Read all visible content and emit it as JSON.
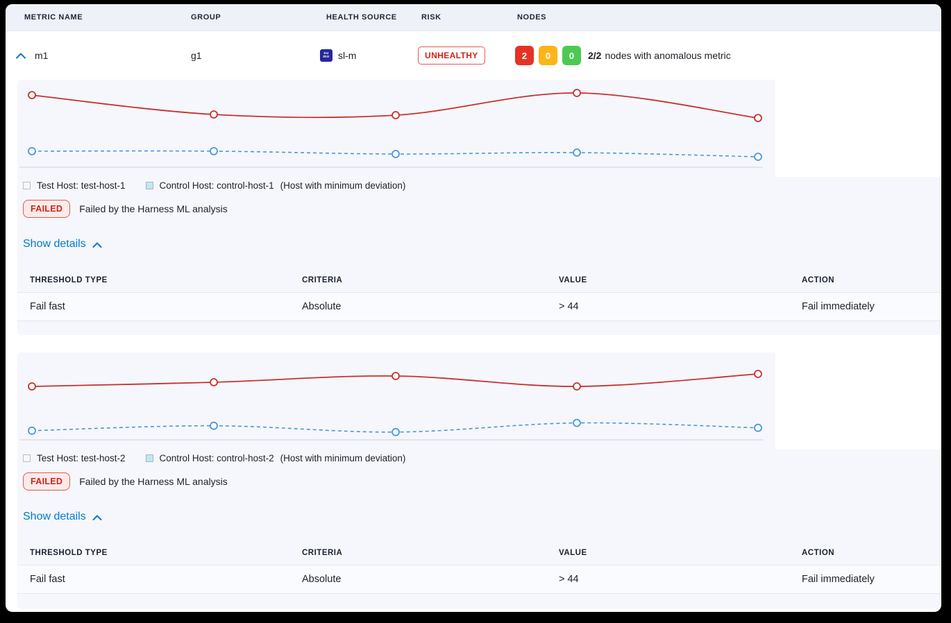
{
  "header": {
    "columns": [
      "METRIC NAME",
      "GROUP",
      "HEALTH SOURCE",
      "RISK",
      "NODES"
    ]
  },
  "metric_row": {
    "metric_name": "m1",
    "group": "g1",
    "health_source": {
      "icon": "sumologic-icon",
      "icon_text_top": "su",
      "icon_text_bottom": "mo",
      "label": "sl-m"
    },
    "risk": "UNHEALTHY",
    "nodes": {
      "counts": [
        {
          "value": "2",
          "color": "#e43326"
        },
        {
          "value": "0",
          "color": "#fcb519"
        },
        {
          "value": "0",
          "color": "#4dc952"
        }
      ],
      "ratio": "2/2",
      "label": "nodes with anomalous metric"
    }
  },
  "panels": [
    {
      "legend": {
        "test_label": "Test Host: test-host-1",
        "control_label": "Control Host: control-host-1",
        "deviation_note": "(Host with minimum deviation)"
      },
      "status": {
        "badge": "FAILED",
        "message": "Failed by the Harness ML analysis"
      },
      "details_link": "Show details",
      "table": {
        "columns": [
          "THRESHOLD TYPE",
          "CRITERIA",
          "VALUE",
          "ACTION"
        ],
        "rows": [
          [
            "Fail fast",
            "Absolute",
            "> 44",
            "Fail immediately"
          ]
        ]
      }
    },
    {
      "legend": {
        "test_label": "Test Host: test-host-2",
        "control_label": "Control Host: control-host-2",
        "deviation_note": "(Host with minimum deviation)"
      },
      "status": {
        "badge": "FAILED",
        "message": "Failed by the Harness ML analysis"
      },
      "details_link": "Show details",
      "table": {
        "columns": [
          "THRESHOLD TYPE",
          "CRITERIA",
          "VALUE",
          "ACTION"
        ],
        "rows": [
          [
            "Fail fast",
            "Absolute",
            "> 44",
            "Fail immediately"
          ]
        ]
      }
    }
  ],
  "chart_data": [
    {
      "type": "line",
      "x": [
        1,
        2,
        3,
        4,
        5
      ],
      "xlabel": "",
      "ylabel": "",
      "ylim": [
        0,
        100
      ],
      "grid": false,
      "axes_hidden": true,
      "legend_position": "below",
      "series": [
        {
          "name": "Test Host: test-host-1",
          "color": "#c9302c",
          "style": "solid",
          "values": [
            82.5,
            60.3,
            59.5,
            84.9,
            56.3
          ]
        },
        {
          "name": "Control Host: control-host-1",
          "color": "#4697e0",
          "style": "dashed",
          "values": [
            18.3,
            18.3,
            15.1,
            16.7,
            11.9
          ]
        }
      ]
    },
    {
      "type": "line",
      "x": [
        1,
        2,
        3,
        4,
        5
      ],
      "xlabel": "",
      "ylabel": "",
      "ylim": [
        0,
        100
      ],
      "grid": false,
      "axes_hidden": true,
      "legend_position": "below",
      "series": [
        {
          "name": "Test Host: test-host-2",
          "color": "#c9302c",
          "style": "solid",
          "values": [
            61.1,
            65.9,
            73.0,
            61.1,
            75.4
          ]
        },
        {
          "name": "Control Host: control-host-2",
          "color": "#4697e0",
          "style": "dashed",
          "values": [
            10.5,
            16.1,
            8.9,
            19.4,
            13.7
          ]
        }
      ]
    }
  ],
  "colors": {
    "accent_blue": "#0278d5",
    "risk_red": "#cf2318",
    "node_red": "#e43326",
    "node_yellow": "#fcb519",
    "node_green": "#4dc952",
    "test_line": "#c9302c",
    "control_line": "#4697e0",
    "panel_bg": "#f6f7fc",
    "header_band_bg": "#eef1f7",
    "axis_line": "#ccd2e2"
  }
}
